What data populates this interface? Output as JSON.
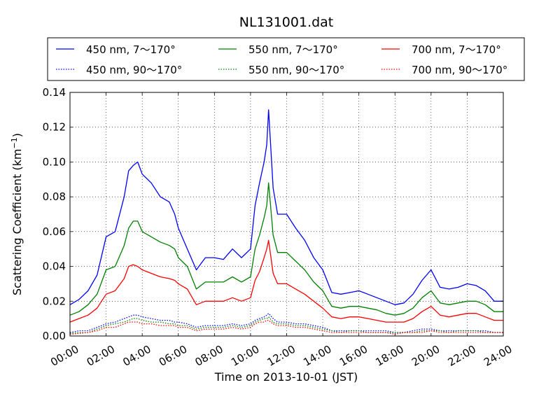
{
  "chart_data": {
    "type": "line",
    "title": "NL131001.dat",
    "xlabel": "Time on 2013-10-01 (JST)",
    "ylabel": "Scattering Coefficient (km",
    "ylabel_sup": "−1",
    "ylabel_end": ")",
    "xlim": [
      0,
      24
    ],
    "ylim": [
      0,
      0.14
    ],
    "x_unit": "hour",
    "grid": true,
    "legend": {
      "position": "top",
      "columns": 3
    },
    "x_ticks": [
      {
        "value": 0,
        "label": "00:00"
      },
      {
        "value": 2,
        "label": "02:00"
      },
      {
        "value": 4,
        "label": "04:00"
      },
      {
        "value": 6,
        "label": "06:00"
      },
      {
        "value": 8,
        "label": "08:00"
      },
      {
        "value": 10,
        "label": "10:00"
      },
      {
        "value": 12,
        "label": "12:00"
      },
      {
        "value": 14,
        "label": "14:00"
      },
      {
        "value": 16,
        "label": "16:00"
      },
      {
        "value": 18,
        "label": "18:00"
      },
      {
        "value": 20,
        "label": "20:00"
      },
      {
        "value": 22,
        "label": "22:00"
      },
      {
        "value": 24,
        "label": "24:00"
      }
    ],
    "y_ticks": [
      {
        "value": 0,
        "label": "0.00"
      },
      {
        "value": 0.02,
        "label": "0.02"
      },
      {
        "value": 0.04,
        "label": "0.04"
      },
      {
        "value": 0.06,
        "label": "0.06"
      },
      {
        "value": 0.08,
        "label": "0.08"
      },
      {
        "value": 0.1,
        "label": "0.10"
      },
      {
        "value": 0.12,
        "label": "0.12"
      },
      {
        "value": 0.14,
        "label": "0.14"
      }
    ],
    "x": [
      0,
      0.5,
      1,
      1.5,
      2,
      2.5,
      3,
      3.25,
      3.5,
      3.75,
      4,
      4.5,
      5,
      5.5,
      5.8,
      6,
      6.5,
      7,
      7.5,
      8,
      8.5,
      9,
      9.5,
      10,
      10.25,
      10.5,
      10.75,
      10.9,
      11,
      11.25,
      11.5,
      12,
      12.5,
      13,
      13.5,
      14,
      14.5,
      15,
      15.5,
      16,
      16.5,
      17,
      17.5,
      18,
      18.5,
      19,
      19.5,
      20,
      20.5,
      21,
      21.5,
      22,
      22.5,
      23,
      23.5,
      24
    ],
    "series": [
      {
        "name": "450 nm, 7～170°",
        "color": "#0000ff",
        "style": "solid",
        "values": [
          0.018,
          0.021,
          0.026,
          0.035,
          0.057,
          0.06,
          0.08,
          0.095,
          0.098,
          0.1,
          0.093,
          0.088,
          0.08,
          0.077,
          0.07,
          0.062,
          0.05,
          0.038,
          0.045,
          0.045,
          0.044,
          0.05,
          0.045,
          0.05,
          0.075,
          0.088,
          0.1,
          0.11,
          0.13,
          0.085,
          0.07,
          0.07,
          0.062,
          0.055,
          0.045,
          0.038,
          0.025,
          0.024,
          0.025,
          0.026,
          0.024,
          0.022,
          0.02,
          0.018,
          0.019,
          0.024,
          0.032,
          0.038,
          0.028,
          0.027,
          0.028,
          0.03,
          0.029,
          0.026,
          0.02,
          0.02
        ]
      },
      {
        "name": "550 nm, 7～170°",
        "color": "#008000",
        "style": "solid",
        "values": [
          0.012,
          0.014,
          0.018,
          0.024,
          0.038,
          0.04,
          0.052,
          0.062,
          0.066,
          0.066,
          0.06,
          0.057,
          0.054,
          0.052,
          0.05,
          0.045,
          0.04,
          0.027,
          0.031,
          0.031,
          0.031,
          0.034,
          0.031,
          0.034,
          0.05,
          0.058,
          0.068,
          0.075,
          0.088,
          0.058,
          0.048,
          0.048,
          0.043,
          0.038,
          0.031,
          0.026,
          0.017,
          0.016,
          0.017,
          0.017,
          0.016,
          0.015,
          0.013,
          0.012,
          0.013,
          0.016,
          0.022,
          0.026,
          0.019,
          0.018,
          0.019,
          0.02,
          0.02,
          0.018,
          0.014,
          0.014
        ]
      },
      {
        "name": "700 nm, 7～170°",
        "color": "#ff0000",
        "style": "solid",
        "values": [
          0.008,
          0.01,
          0.012,
          0.016,
          0.024,
          0.026,
          0.033,
          0.04,
          0.041,
          0.04,
          0.038,
          0.036,
          0.034,
          0.033,
          0.032,
          0.03,
          0.027,
          0.018,
          0.02,
          0.02,
          0.02,
          0.022,
          0.02,
          0.022,
          0.032,
          0.037,
          0.045,
          0.05,
          0.055,
          0.036,
          0.03,
          0.03,
          0.027,
          0.024,
          0.02,
          0.016,
          0.011,
          0.01,
          0.011,
          0.011,
          0.01,
          0.009,
          0.008,
          0.008,
          0.008,
          0.01,
          0.014,
          0.017,
          0.012,
          0.011,
          0.012,
          0.013,
          0.013,
          0.011,
          0.009,
          0.009
        ]
      },
      {
        "name": "450 nm, 90～170°",
        "color": "#0000ff",
        "style": "dotted",
        "values": [
          0.002,
          0.003,
          0.003,
          0.005,
          0.007,
          0.008,
          0.01,
          0.011,
          0.012,
          0.012,
          0.011,
          0.01,
          0.009,
          0.009,
          0.008,
          0.008,
          0.007,
          0.005,
          0.006,
          0.006,
          0.006,
          0.007,
          0.006,
          0.007,
          0.009,
          0.01,
          0.011,
          0.012,
          0.013,
          0.01,
          0.008,
          0.008,
          0.007,
          0.007,
          0.006,
          0.005,
          0.003,
          0.003,
          0.003,
          0.003,
          0.003,
          0.003,
          0.003,
          0.002,
          0.002,
          0.003,
          0.004,
          0.004,
          0.003,
          0.003,
          0.003,
          0.003,
          0.003,
          0.003,
          0.002,
          0.002
        ]
      },
      {
        "name": "550 nm, 90～170°",
        "color": "#008000",
        "style": "dotted",
        "values": [
          0.0015,
          0.002,
          0.002,
          0.004,
          0.006,
          0.007,
          0.008,
          0.009,
          0.01,
          0.01,
          0.009,
          0.008,
          0.008,
          0.007,
          0.007,
          0.006,
          0.006,
          0.004,
          0.005,
          0.005,
          0.005,
          0.006,
          0.005,
          0.006,
          0.008,
          0.009,
          0.01,
          0.01,
          0.011,
          0.008,
          0.007,
          0.007,
          0.006,
          0.006,
          0.005,
          0.004,
          0.003,
          0.002,
          0.003,
          0.003,
          0.002,
          0.002,
          0.002,
          0.002,
          0.002,
          0.002,
          0.003,
          0.003,
          0.003,
          0.002,
          0.003,
          0.003,
          0.003,
          0.002,
          0.002,
          0.002
        ]
      },
      {
        "name": "700 nm, 90～170°",
        "color": "#ff0000",
        "style": "dotted",
        "values": [
          0.001,
          0.0015,
          0.002,
          0.003,
          0.005,
          0.005,
          0.007,
          0.008,
          0.008,
          0.008,
          0.007,
          0.007,
          0.006,
          0.006,
          0.006,
          0.005,
          0.005,
          0.003,
          0.004,
          0.004,
          0.004,
          0.005,
          0.004,
          0.005,
          0.007,
          0.008,
          0.008,
          0.009,
          0.009,
          0.007,
          0.006,
          0.006,
          0.005,
          0.005,
          0.004,
          0.003,
          0.002,
          0.002,
          0.002,
          0.002,
          0.002,
          0.002,
          0.002,
          0.001,
          0.002,
          0.002,
          0.002,
          0.003,
          0.002,
          0.002,
          0.002,
          0.002,
          0.002,
          0.002,
          0.002,
          0.002
        ]
      }
    ]
  }
}
